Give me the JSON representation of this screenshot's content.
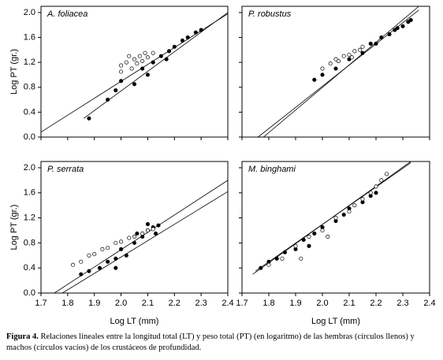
{
  "chart_data": [
    {
      "type": "scatter",
      "title": "A. foliacea",
      "ylabel": "Log PT (gr.)",
      "xlim": [
        1.7,
        2.4
      ],
      "ylim": [
        0,
        2.1
      ],
      "xticks": [
        1.7,
        1.8,
        1.9,
        {
          "value": 2.0,
          "label": "2.0"
        },
        2.1,
        2.2,
        2.3,
        2.4
      ],
      "yticks": [
        {
          "value": 0,
          "label": "0.0"
        },
        0.4,
        0.8,
        1.2,
        1.6,
        {
          "value": 2.0,
          "label": "2.0"
        }
      ],
      "show_xtick_labels": false,
      "show_ytick_labels": true,
      "series": [
        {
          "color": "#000000",
          "filled": true,
          "x": [
            1.88,
            1.95,
            1.98,
            2.0,
            2.05,
            2.08,
            2.12,
            2.15,
            2.18,
            2.2,
            2.23,
            2.25,
            2.28,
            2.3,
            2.1,
            2.17
          ],
          "y": [
            0.3,
            0.6,
            0.75,
            0.9,
            0.85,
            1.1,
            1.2,
            1.3,
            1.38,
            1.45,
            1.55,
            1.6,
            1.68,
            1.72,
            1.0,
            1.25
          ]
        },
        {
          "color": "#000000",
          "filled": false,
          "x": [
            2.0,
            2.02,
            2.05,
            2.07,
            2.1,
            2.12,
            2.04,
            2.08,
            2.0,
            2.03,
            2.09,
            2.06
          ],
          "y": [
            1.15,
            1.2,
            1.25,
            1.3,
            1.28,
            1.35,
            1.1,
            1.22,
            1.05,
            1.3,
            1.35,
            1.18
          ]
        }
      ],
      "fits": [
        {
          "x": [
            1.7,
            2.4
          ],
          "y": [
            0.08,
            1.98
          ]
        },
        {
          "x": [
            1.86,
            2.4
          ],
          "y": [
            0.3,
            2.0
          ]
        }
      ]
    },
    {
      "type": "scatter",
      "title": "P. robustus",
      "xlim": [
        1.7,
        2.4
      ],
      "ylim": [
        0,
        2.1
      ],
      "xticks": [
        1.7,
        1.8,
        1.9,
        {
          "value": 2.0,
          "label": "2.0"
        },
        2.1,
        2.2,
        2.3,
        2.4
      ],
      "yticks": [
        {
          "value": 0,
          "label": "0.0"
        },
        0.4,
        0.8,
        1.2,
        1.6,
        {
          "value": 2.0,
          "label": "2.0"
        }
      ],
      "show_xtick_labels": false,
      "show_ytick_labels": false,
      "series": [
        {
          "color": "#000000",
          "filled": true,
          "x": [
            1.97,
            2.0,
            2.05,
            2.1,
            2.15,
            2.2,
            2.22,
            2.25,
            2.27,
            2.3,
            2.32,
            2.33,
            2.28,
            2.18
          ],
          "y": [
            0.92,
            1.0,
            1.1,
            1.25,
            1.35,
            1.5,
            1.6,
            1.65,
            1.72,
            1.78,
            1.85,
            1.88,
            1.75,
            1.5
          ]
        },
        {
          "color": "#000000",
          "filled": false,
          "x": [
            2.0,
            2.03,
            2.06,
            2.08,
            2.1,
            2.12,
            2.14,
            2.05,
            2.11,
            2.15
          ],
          "y": [
            1.1,
            1.18,
            1.22,
            1.3,
            1.32,
            1.38,
            1.4,
            1.25,
            1.28,
            1.45
          ]
        }
      ],
      "fits": [
        {
          "x": [
            1.78,
            2.36
          ],
          "y": [
            0.0,
            2.1
          ]
        },
        {
          "x": [
            1.76,
            2.36
          ],
          "y": [
            0.0,
            2.04
          ]
        }
      ]
    },
    {
      "type": "scatter",
      "title": "P. serrata",
      "ylabel": "Log PT (gr.)",
      "xlabel": "Log LT (mm)",
      "xlim": [
        1.7,
        2.4
      ],
      "ylim": [
        0,
        2.1
      ],
      "xticks": [
        1.7,
        1.8,
        1.9,
        {
          "value": 2.0,
          "label": "2.0"
        },
        2.1,
        2.2,
        2.3,
        2.4
      ],
      "yticks": [
        {
          "value": 0,
          "label": "0.0"
        },
        0.4,
        0.8,
        1.2,
        1.6,
        {
          "value": 2.0,
          "label": "2.0"
        }
      ],
      "show_xtick_labels": true,
      "show_ytick_labels": true,
      "series": [
        {
          "color": "#000000",
          "filled": true,
          "x": [
            1.85,
            1.88,
            1.92,
            1.95,
            1.98,
            2.0,
            2.02,
            2.05,
            2.08,
            2.1,
            2.12,
            2.14,
            2.1,
            2.06,
            2.13,
            1.98
          ],
          "y": [
            0.3,
            0.35,
            0.4,
            0.5,
            0.55,
            0.7,
            0.6,
            0.8,
            0.9,
            1.0,
            1.05,
            1.08,
            1.1,
            0.95,
            0.95,
            0.4
          ]
        },
        {
          "color": "#000000",
          "filled": false,
          "x": [
            1.82,
            1.85,
            1.88,
            1.9,
            1.93,
            1.95,
            1.98,
            2.0,
            2.03,
            2.05,
            2.08,
            2.1,
            2.12
          ],
          "y": [
            0.45,
            0.5,
            0.6,
            0.62,
            0.7,
            0.72,
            0.8,
            0.82,
            0.88,
            0.9,
            0.95,
            1.0,
            1.02
          ]
        }
      ],
      "fits": [
        {
          "x": [
            1.75,
            2.4
          ],
          "y": [
            0.0,
            1.8
          ]
        },
        {
          "x": [
            1.78,
            2.4
          ],
          "y": [
            0.0,
            1.62
          ]
        }
      ]
    },
    {
      "type": "scatter",
      "title": "M. binghami",
      "xlabel": "Log LT (mm)",
      "xlim": [
        1.7,
        2.4
      ],
      "ylim": [
        0,
        2.1
      ],
      "xticks": [
        1.7,
        1.8,
        1.9,
        {
          "value": 2.0,
          "label": "2.0"
        },
        2.1,
        2.2,
        2.3,
        2.4
      ],
      "yticks": [
        {
          "value": 0,
          "label": "0.0"
        },
        0.4,
        0.8,
        1.2,
        1.6,
        {
          "value": 2.0,
          "label": "2.0"
        }
      ],
      "show_xtick_labels": true,
      "show_ytick_labels": false,
      "series": [
        {
          "color": "#000000",
          "filled": true,
          "x": [
            1.77,
            1.8,
            1.83,
            1.86,
            1.9,
            1.93,
            1.97,
            2.0,
            2.05,
            2.08,
            2.1,
            2.15,
            2.18,
            2.2,
            1.95
          ],
          "y": [
            0.4,
            0.5,
            0.55,
            0.65,
            0.7,
            0.85,
            0.95,
            1.05,
            1.15,
            1.25,
            1.35,
            1.45,
            1.55,
            1.6,
            0.75
          ]
        },
        {
          "color": "#000000",
          "filled": false,
          "x": [
            1.8,
            1.85,
            1.9,
            1.95,
            2.0,
            2.05,
            2.1,
            2.15,
            2.18,
            2.2,
            2.22,
            2.24,
            2.12,
            2.02,
            1.92
          ],
          "y": [
            0.45,
            0.55,
            0.75,
            0.9,
            1.0,
            1.2,
            1.3,
            1.5,
            1.6,
            1.7,
            1.8,
            1.9,
            1.4,
            0.9,
            0.55
          ]
        }
      ],
      "fits": [
        {
          "x": [
            1.74,
            2.33
          ],
          "y": [
            0.3,
            2.1
          ]
        },
        {
          "x": [
            1.75,
            2.33
          ],
          "y": [
            0.35,
            2.08
          ]
        }
      ]
    }
  ],
  "caption": {
    "label": "Figura 4.",
    "text": "Relaciones lineales entre la longitud total (LT) y peso total (PT) (en logaritmo) de las hembras (círculos llenos) y machos (círculos vacíos) de los crustáceos de profundidad."
  }
}
